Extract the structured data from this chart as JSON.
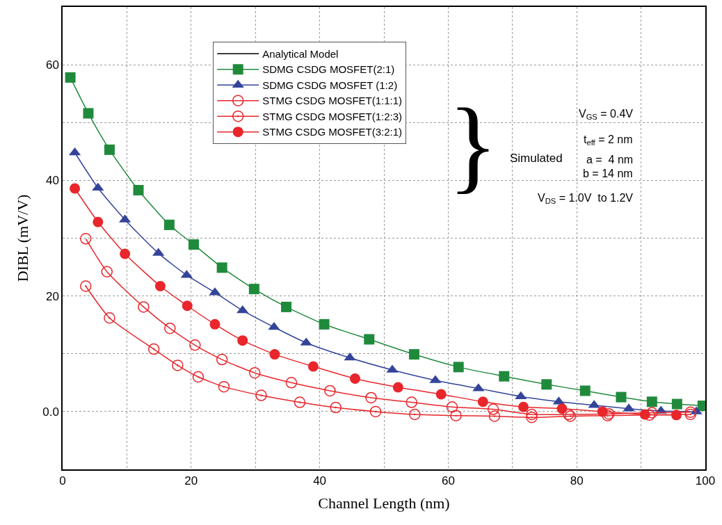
{
  "chart_data": {
    "type": "line",
    "xlabel": "Channel Length (nm)",
    "ylabel": "DIBL (mV/V)",
    "xlim": [
      0,
      100
    ],
    "ylim": [
      -10,
      70
    ],
    "xticks": [
      0,
      {
        "value": 10,
        "label": null
      },
      20,
      {
        "value": 30,
        "label": null
      },
      40,
      {
        "value": 50,
        "label": null
      },
      60,
      {
        "value": 70,
        "label": null
      },
      80,
      {
        "value": 90,
        "label": null
      },
      100
    ],
    "yticks": [
      {
        "value": -10,
        "label": null
      },
      {
        "value": 0,
        "label": "0.0"
      },
      {
        "value": 10,
        "label": null
      },
      20,
      {
        "value": 30,
        "label": null
      },
      40,
      {
        "value": 50,
        "label": null
      },
      60
    ],
    "grid": true,
    "legend": "top",
    "line_style": "solid",
    "annotations": [
      "}",
      "Simulated",
      "V$_{GS}$ = 0.4V",
      "t$_{eff}$ = 2 nm",
      "a =  4 nm",
      "b = 14 nm",
      "V$_{DS}$ = 1.0V  to 1.2V"
    ],
    "series": [
      {
        "name": "Analytical Model",
        "color": "#000000",
        "marker": "none"
      },
      {
        "name": "SDMG CSDG MOSFET(2:1)",
        "color": "#208a3c",
        "marker": "square",
        "x": [
          1.2,
          4.0,
          7.3,
          11.8,
          16.6,
          20.4,
          24.8,
          29.8,
          34.8,
          40.7,
          47.7,
          54.7,
          61.6,
          68.7,
          75.3,
          81.3,
          86.9,
          91.7,
          95.6,
          99.6
        ],
        "values": [
          57.8,
          51.6,
          45.3,
          38.3,
          32.3,
          28.9,
          24.9,
          21.2,
          18.1,
          15.1,
          12.5,
          9.9,
          7.7,
          6.1,
          4.7,
          3.6,
          2.5,
          1.7,
          1.3,
          1.0
        ]
      },
      {
        "name": "SDMG CSDG MOSFET (1:2)",
        "color": "#33449a",
        "marker": "triangle",
        "x": [
          1.9,
          5.5,
          9.7,
          14.9,
          19.3,
          23.7,
          28.0,
          32.9,
          37.9,
          44.7,
          51.3,
          58.0,
          64.7,
          71.3,
          77.2,
          82.7,
          88.1,
          93.1,
          98.6
        ],
        "values": [
          44.8,
          38.7,
          33.2,
          27.4,
          23.6,
          20.6,
          17.5,
          14.6,
          11.9,
          9.3,
          7.2,
          5.4,
          4.0,
          2.6,
          1.7,
          1.1,
          0.5,
          0.1,
          0
        ]
      },
      {
        "name": "STMG CSDG MOSFET(1:1:1)",
        "color": "#e8262b",
        "marker": "circle-open",
        "x": [
          3.6,
          6.9,
          12.6,
          16.7,
          20.6,
          24.8,
          29.9,
          35.6,
          41.6,
          48.0,
          54.3,
          60.6,
          67.0,
          73.0,
          78.7,
          85.0,
          91.7,
          97.7
        ],
        "values": [
          29.9,
          24.2,
          18.1,
          14.4,
          11.5,
          9.0,
          6.7,
          5.0,
          3.6,
          2.4,
          1.6,
          0.8,
          0.4,
          -0.5,
          -0.5,
          -0.4,
          -0.2,
          -0.1
        ]
      },
      {
        "name": "STMG CSDG MOSFET(1:2:3)",
        "color": "#e8262b",
        "marker": "circle-half",
        "x": [
          3.6,
          7.3,
          14.2,
          17.9,
          21.1,
          25.1,
          30.9,
          36.9,
          42.5,
          48.7,
          54.8,
          61.2,
          67.2,
          73.0,
          79.0,
          84.8,
          91.3,
          97.7
        ],
        "values": [
          21.7,
          16.2,
          10.8,
          8.0,
          6.0,
          4.3,
          2.8,
          1.6,
          0.7,
          0,
          -0.5,
          -0.7,
          -0.8,
          -1.0,
          -0.8,
          -0.7,
          -0.6,
          -0.5
        ]
      },
      {
        "name": "STMG CSDG MOSFET(3:2:1)",
        "color": "#e8262b",
        "marker": "circle",
        "x": [
          1.9,
          5.5,
          9.7,
          15.2,
          19.4,
          23.7,
          28.0,
          33.0,
          39.0,
          45.5,
          52.2,
          58.9,
          65.4,
          71.7,
          77.7,
          84.0,
          90.6,
          95.5
        ],
        "values": [
          38.6,
          32.8,
          27.3,
          21.7,
          18.3,
          15.1,
          12.3,
          9.9,
          7.8,
          5.7,
          4.2,
          3.0,
          1.7,
          0.8,
          0.5,
          0,
          -0.5,
          -0.6
        ]
      }
    ]
  }
}
